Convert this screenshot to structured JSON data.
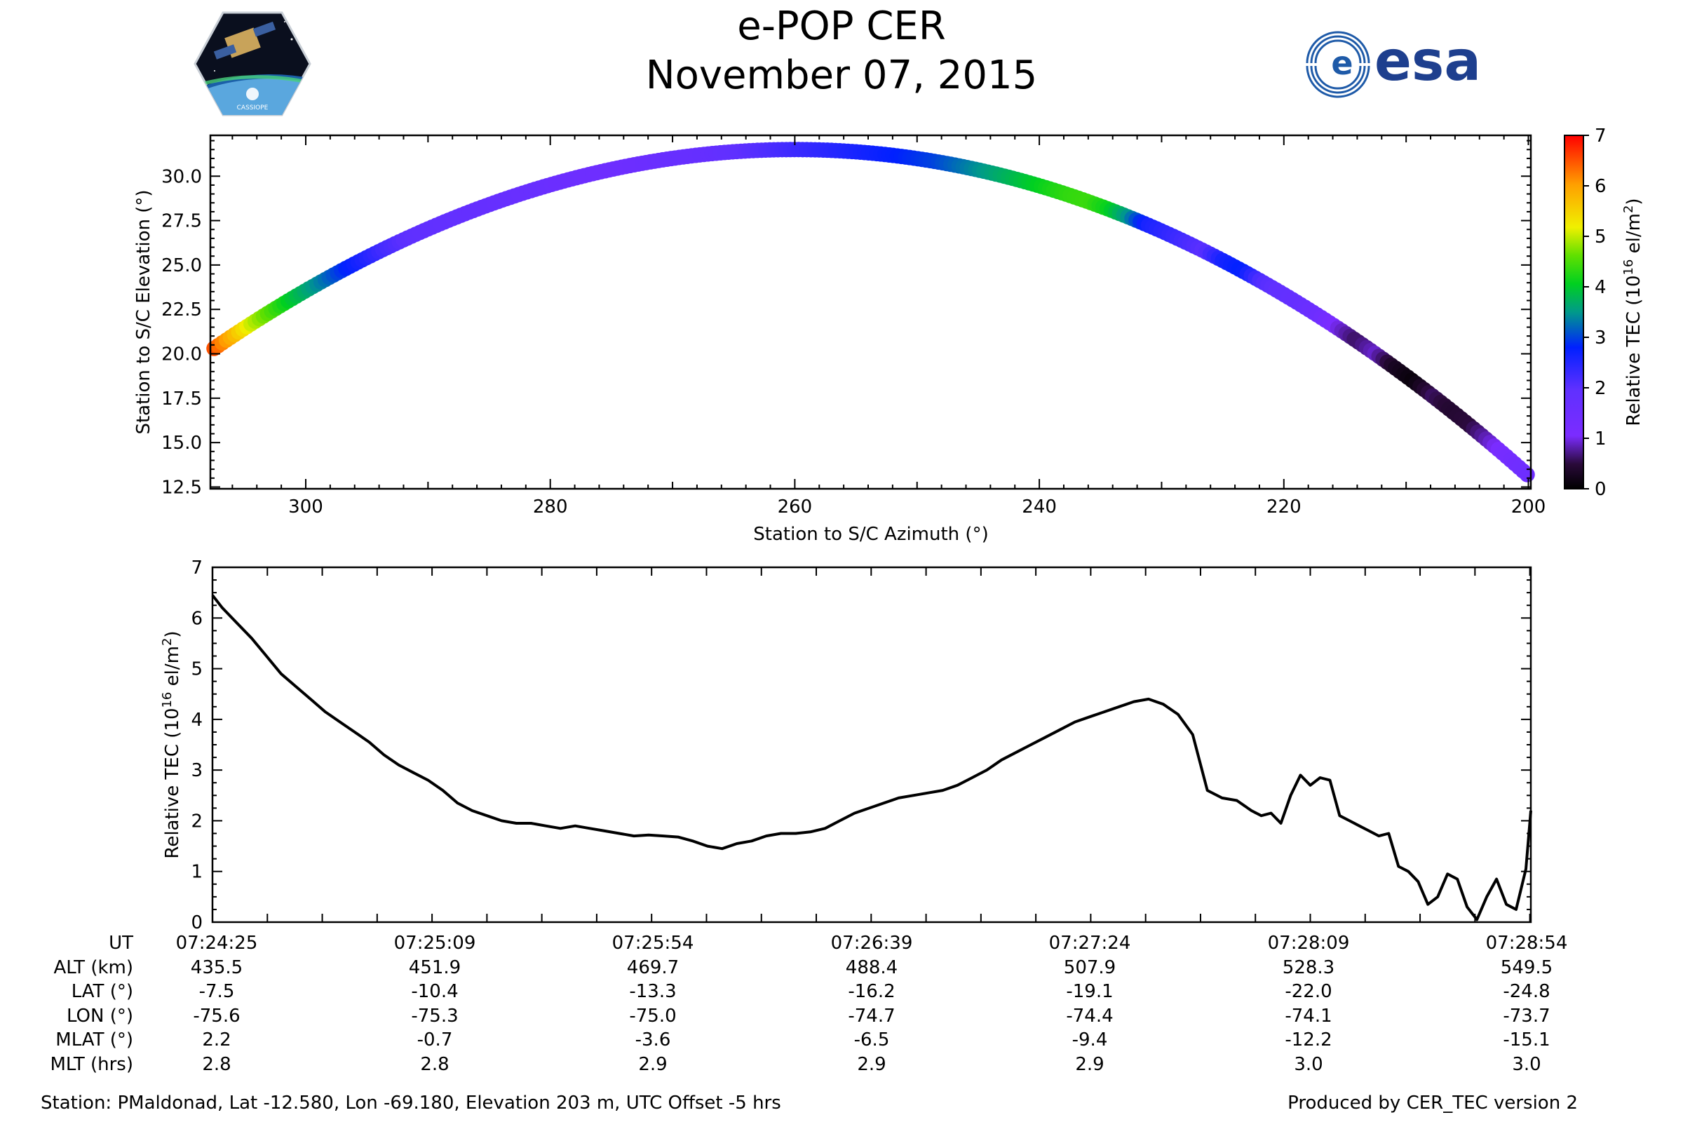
{
  "title": "e-POP CER",
  "date": "November 07, 2015",
  "logos": {
    "left_text": "CASSIOPE",
    "right_text": "esa"
  },
  "chart_data": [
    {
      "type": "scatter",
      "title": "",
      "xlabel": "Station to S/C Azimuth (°)",
      "ylabel": "Station to S/C Elevation (°)",
      "xlim": [
        307.8,
        199.8
      ],
      "ylim": [
        12.4,
        32.3
      ],
      "xticks": [
        300,
        280,
        260,
        240,
        220,
        200
      ],
      "xtick_labels": [
        "300",
        "280",
        "260",
        "240",
        "220",
        "200"
      ],
      "yticks": [
        12.5,
        15.0,
        17.5,
        20.0,
        22.5,
        25.0,
        27.5,
        30.0
      ],
      "ytick_labels": [
        "12.5",
        "15.0",
        "17.5",
        "20.0",
        "22.5",
        "25.0",
        "27.5",
        "30.0"
      ],
      "track": {
        "az_start": 307.5,
        "el_start": 20.3,
        "az_peak": 260.0,
        "el_peak": 31.5,
        "az_end": 200.1,
        "el_end": 13.2,
        "tec": [
          6.5,
          5.8,
          5.0,
          4.5,
          4.0,
          3.6,
          3.2,
          2.8,
          2.5,
          2.2,
          2.0,
          1.95,
          1.9,
          1.85,
          1.8,
          1.75,
          1.7,
          1.7,
          1.6,
          1.55,
          1.5,
          1.5,
          1.55,
          1.6,
          1.7,
          1.75,
          1.8,
          1.9,
          2.0,
          2.1,
          2.2,
          2.3,
          2.4,
          2.5,
          2.6,
          2.7,
          2.8,
          2.9,
          3.0,
          3.2,
          3.4,
          3.6,
          3.8,
          4.0,
          4.2,
          4.35,
          4.4,
          4.1,
          3.5,
          2.6,
          2.4,
          2.2,
          2.0,
          2.6,
          2.8,
          2.1,
          1.9,
          1.8,
          1.5,
          1.0,
          0.6,
          0.9,
          0.3,
          0.1,
          0.6,
          0.4,
          0.5,
          0.9,
          1.3,
          1.5
        ]
      },
      "colorbar": {
        "label": "Relative TEC (10",
        "label_sup": "16",
        "label_tail": " el/m",
        "label_sup2": "2",
        "label_end": ")",
        "min": 0,
        "max": 7,
        "ticks": [
          0,
          1,
          2,
          3,
          4,
          5,
          6,
          7
        ],
        "tick_labels": [
          "0",
          "1",
          "2",
          "3",
          "4",
          "5",
          "6",
          "7"
        ]
      }
    },
    {
      "type": "line",
      "title": "",
      "xlabel": "",
      "ylabel": "Relative TEC (10",
      "ylabel_sup": "16",
      "ylabel_tail": " el/m",
      "ylabel_sup2": "2",
      "ylabel_end": ")",
      "xlim_seconds": [
        0,
        269
      ],
      "ylim": [
        0,
        7
      ],
      "yticks": [
        0,
        1,
        2,
        3,
        4,
        5,
        6,
        7
      ],
      "ytick_labels": [
        "0",
        "1",
        "2",
        "3",
        "4",
        "5",
        "6",
        "7"
      ],
      "t": [
        0,
        2,
        5,
        8,
        11,
        14,
        17,
        20,
        23,
        26,
        29,
        32,
        35,
        38,
        41,
        44,
        47,
        50,
        53,
        56,
        59,
        62,
        65,
        68,
        71,
        74,
        77,
        80,
        83,
        86,
        89,
        92,
        95,
        98,
        101,
        104,
        107,
        110,
        113,
        116,
        119,
        122,
        125,
        128,
        131,
        134,
        137,
        140,
        143,
        146,
        149,
        152,
        155,
        158,
        161,
        164,
        167,
        170,
        173,
        176,
        179,
        182,
        185,
        188,
        191,
        194,
        197,
        200,
        203,
        206,
        209,
        212,
        214,
        216,
        218,
        220,
        222,
        224,
        226,
        228,
        230,
        232,
        234,
        236,
        238,
        240,
        242,
        244,
        246,
        248,
        250,
        252,
        254,
        256,
        258,
        260,
        262,
        264,
        266,
        268,
        269
      ],
      "tec": [
        6.45,
        6.2,
        5.9,
        5.6,
        5.25,
        4.9,
        4.65,
        4.4,
        4.15,
        3.95,
        3.75,
        3.55,
        3.3,
        3.1,
        2.95,
        2.8,
        2.6,
        2.35,
        2.2,
        2.1,
        2.0,
        1.95,
        1.95,
        1.9,
        1.85,
        1.9,
        1.85,
        1.8,
        1.75,
        1.7,
        1.72,
        1.7,
        1.68,
        1.6,
        1.5,
        1.45,
        1.55,
        1.6,
        1.7,
        1.75,
        1.75,
        1.78,
        1.85,
        2.0,
        2.15,
        2.25,
        2.35,
        2.45,
        2.5,
        2.55,
        2.6,
        2.7,
        2.85,
        3.0,
        3.2,
        3.35,
        3.5,
        3.65,
        3.8,
        3.95,
        4.05,
        4.15,
        4.25,
        4.35,
        4.4,
        4.3,
        4.1,
        3.7,
        2.6,
        2.45,
        2.4,
        2.2,
        2.1,
        2.15,
        1.95,
        2.5,
        2.9,
        2.7,
        2.85,
        2.8,
        2.1,
        2.0,
        1.9,
        1.8,
        1.7,
        1.75,
        1.1,
        1.0,
        0.8,
        0.35,
        0.5,
        0.95,
        0.85,
        0.3,
        0.05,
        0.5,
        0.85,
        0.35,
        0.25,
        1.05,
        2.2
      ]
    }
  ],
  "orbit_table": {
    "row_labels": [
      "UT",
      "ALT (km)",
      "LAT (°)",
      "LON (°)",
      "MLAT (°)",
      "MLT (hrs)"
    ],
    "columns": [
      [
        "07:24:25",
        "435.5",
        "-7.5",
        "-75.6",
        "2.2",
        "2.8"
      ],
      [
        "07:25:09",
        "451.9",
        "-10.4",
        "-75.3",
        "-0.7",
        "2.8"
      ],
      [
        "07:25:54",
        "469.7",
        "-13.3",
        "-75.0",
        "-3.6",
        "2.9"
      ],
      [
        "07:26:39",
        "488.4",
        "-16.2",
        "-74.7",
        "-6.5",
        "2.9"
      ],
      [
        "07:27:24",
        "507.9",
        "-19.1",
        "-74.4",
        "-9.4",
        "2.9"
      ],
      [
        "07:28:09",
        "528.3",
        "-22.0",
        "-74.1",
        "-12.2",
        "3.0"
      ],
      [
        "07:28:54",
        "549.5",
        "-24.8",
        "-73.7",
        "-15.1",
        "3.0"
      ]
    ]
  },
  "footer": {
    "station": "Station: PMaldonad, Lat -12.580, Lon -69.180, Elevation 203 m, UTC Offset -5 hrs",
    "produced": "Produced by CER_TEC version 2"
  }
}
